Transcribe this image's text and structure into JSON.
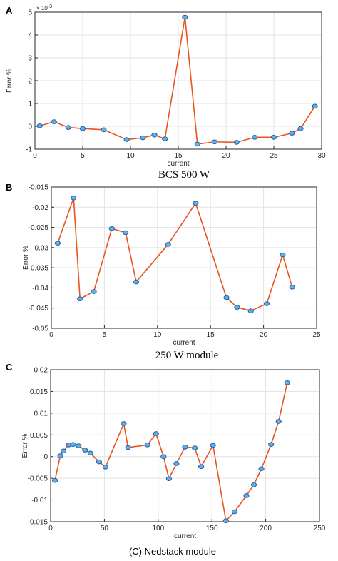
{
  "colors": {
    "line": "#E8541E",
    "marker_fill": "#5EB0E6",
    "marker_edge": "#1F5FA8",
    "grid": "#E3E3E3",
    "axis": "#262626"
  },
  "chart_data": [
    {
      "panel": "A",
      "type": "line",
      "caption": "BCS 500 W",
      "xlabel": "current",
      "ylabel": "Error %",
      "y_multiplier_label": "× 10",
      "y_multiplier_exponent": "-3",
      "xlim": [
        0,
        30
      ],
      "ylim": [
        -1,
        5
      ],
      "xticks": [
        "0",
        "5",
        "10",
        "15",
        "20",
        "25",
        "30"
      ],
      "yticks": [
        "-1",
        "0",
        "1",
        "2",
        "3",
        "4",
        "5"
      ],
      "grid": true,
      "x": [
        0.5,
        2,
        3.5,
        5,
        7.2,
        9.6,
        11.3,
        12.5,
        13.6,
        15.7,
        17,
        18.8,
        21.1,
        23,
        25,
        26.9,
        27.8,
        29.3
      ],
      "y": [
        0.02,
        0.2,
        -0.05,
        -0.1,
        -0.15,
        -0.58,
        -0.5,
        -0.38,
        -0.55,
        4.78,
        -0.78,
        -0.68,
        -0.7,
        -0.48,
        -0.48,
        -0.3,
        -0.1,
        0.88
      ]
    },
    {
      "panel": "B",
      "type": "line",
      "caption": "250 W module",
      "xlabel": "current",
      "ylabel": "Error %",
      "xlim": [
        0,
        25
      ],
      "ylim": [
        -0.05,
        -0.015
      ],
      "xticks": [
        "0",
        "5",
        "10",
        "15",
        "20",
        "25"
      ],
      "yticks": [
        "-0.05",
        "-0.045",
        "-0.04",
        "-0.035",
        "-0.03",
        "-0.025",
        "-0.02",
        "-0.015"
      ],
      "grid": true,
      "x": [
        0.6,
        2.1,
        2.7,
        4,
        5.7,
        7,
        8,
        11,
        13.6,
        16.5,
        17.5,
        18.8,
        20.3,
        21.8,
        22.7
      ],
      "y": [
        -0.0289,
        -0.0177,
        -0.0427,
        -0.0409,
        -0.0253,
        -0.0263,
        -0.0385,
        -0.0292,
        -0.019,
        -0.0424,
        -0.0448,
        -0.0457,
        -0.0439,
        -0.0318,
        -0.0398
      ]
    },
    {
      "panel": "C",
      "type": "line",
      "caption": "(C) Nedstack module",
      "xlabel": "current",
      "ylabel": "Error %",
      "xlim": [
        0,
        250
      ],
      "ylim": [
        -0.015,
        0.02
      ],
      "xticks": [
        "0",
        "50",
        "100",
        "150",
        "200",
        "250"
      ],
      "yticks": [
        "-0.015",
        "-0.01",
        "-0.005",
        "0",
        "0.005",
        "0.01",
        "0.015",
        "0.02"
      ],
      "grid": true,
      "x": [
        4,
        9,
        12,
        17,
        21,
        26,
        32,
        37,
        45,
        51,
        68,
        72,
        90,
        98,
        105,
        110,
        117,
        125,
        134,
        140,
        151,
        163,
        171,
        182,
        189,
        196,
        205,
        212,
        220
      ],
      "y": [
        -0.0055,
        0.0002,
        0.0013,
        0.0027,
        0.0028,
        0.0025,
        0.0015,
        0.0008,
        -0.0012,
        -0.0024,
        0.0076,
        0.0021,
        0.0027,
        0.0053,
        0.0,
        -0.0051,
        -0.0016,
        0.0022,
        0.002,
        -0.0023,
        0.0026,
        -0.0148,
        -0.0127,
        -0.009,
        -0.0065,
        -0.0028,
        0.0028,
        0.0081,
        0.017
      ]
    }
  ]
}
